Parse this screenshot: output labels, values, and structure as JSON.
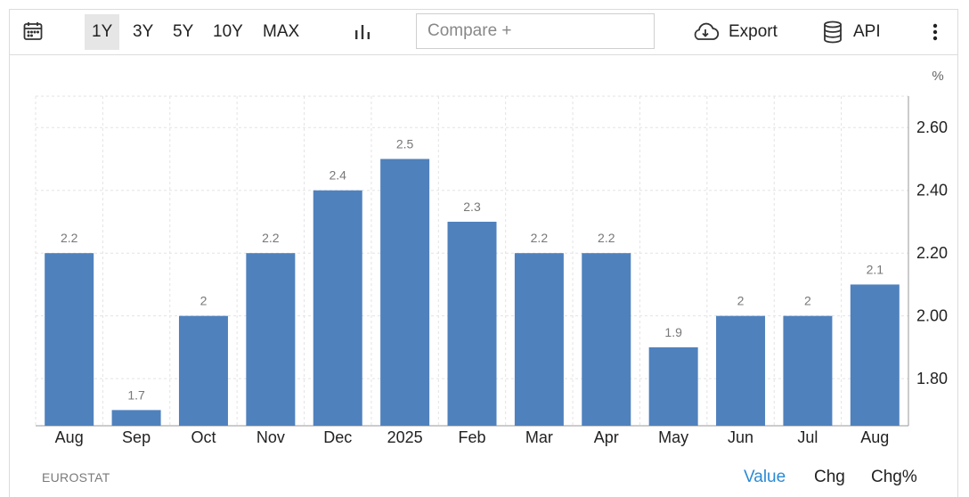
{
  "toolbar": {
    "ranges": [
      "1Y",
      "3Y",
      "5Y",
      "10Y",
      "MAX"
    ],
    "active_range": "1Y",
    "compare_placeholder": "Compare +",
    "export_label": "Export",
    "api_label": "API",
    "icons": {
      "calendar": "calendar-icon",
      "chart_type": "bar-chart-icon",
      "export": "cloud-download-icon",
      "api": "database-icon",
      "more": "more-vertical-icon"
    }
  },
  "footer": {
    "source": "EUROSTAT",
    "views": [
      "Value",
      "Chg",
      "Chg%"
    ],
    "active_view": "Value"
  },
  "colors": {
    "bar": "#4f81bd",
    "accent": "#2a8ad4",
    "grid": "#e3e3e3"
  },
  "chart_data": {
    "type": "bar",
    "categories": [
      "Aug",
      "Sep",
      "Oct",
      "Nov",
      "Dec",
      "2025",
      "Feb",
      "Mar",
      "Apr",
      "May",
      "Jun",
      "Jul",
      "Aug"
    ],
    "values": [
      2.2,
      1.7,
      2,
      2.2,
      2.4,
      2.5,
      2.3,
      2.2,
      2.2,
      1.9,
      2,
      2,
      2.1
    ],
    "value_labels": [
      "2.2",
      "1.7",
      "2",
      "2.2",
      "2.4",
      "2.5",
      "2.3",
      "2.2",
      "2.2",
      "1.9",
      "2",
      "2",
      "2.1"
    ],
    "unit": "%",
    "y_ticks": [
      "2.60",
      "2.40",
      "2.20",
      "2.00",
      "1.80"
    ],
    "ylim": [
      1.65,
      2.7
    ],
    "y_axis_position": "right",
    "grid": true,
    "legend": false
  }
}
